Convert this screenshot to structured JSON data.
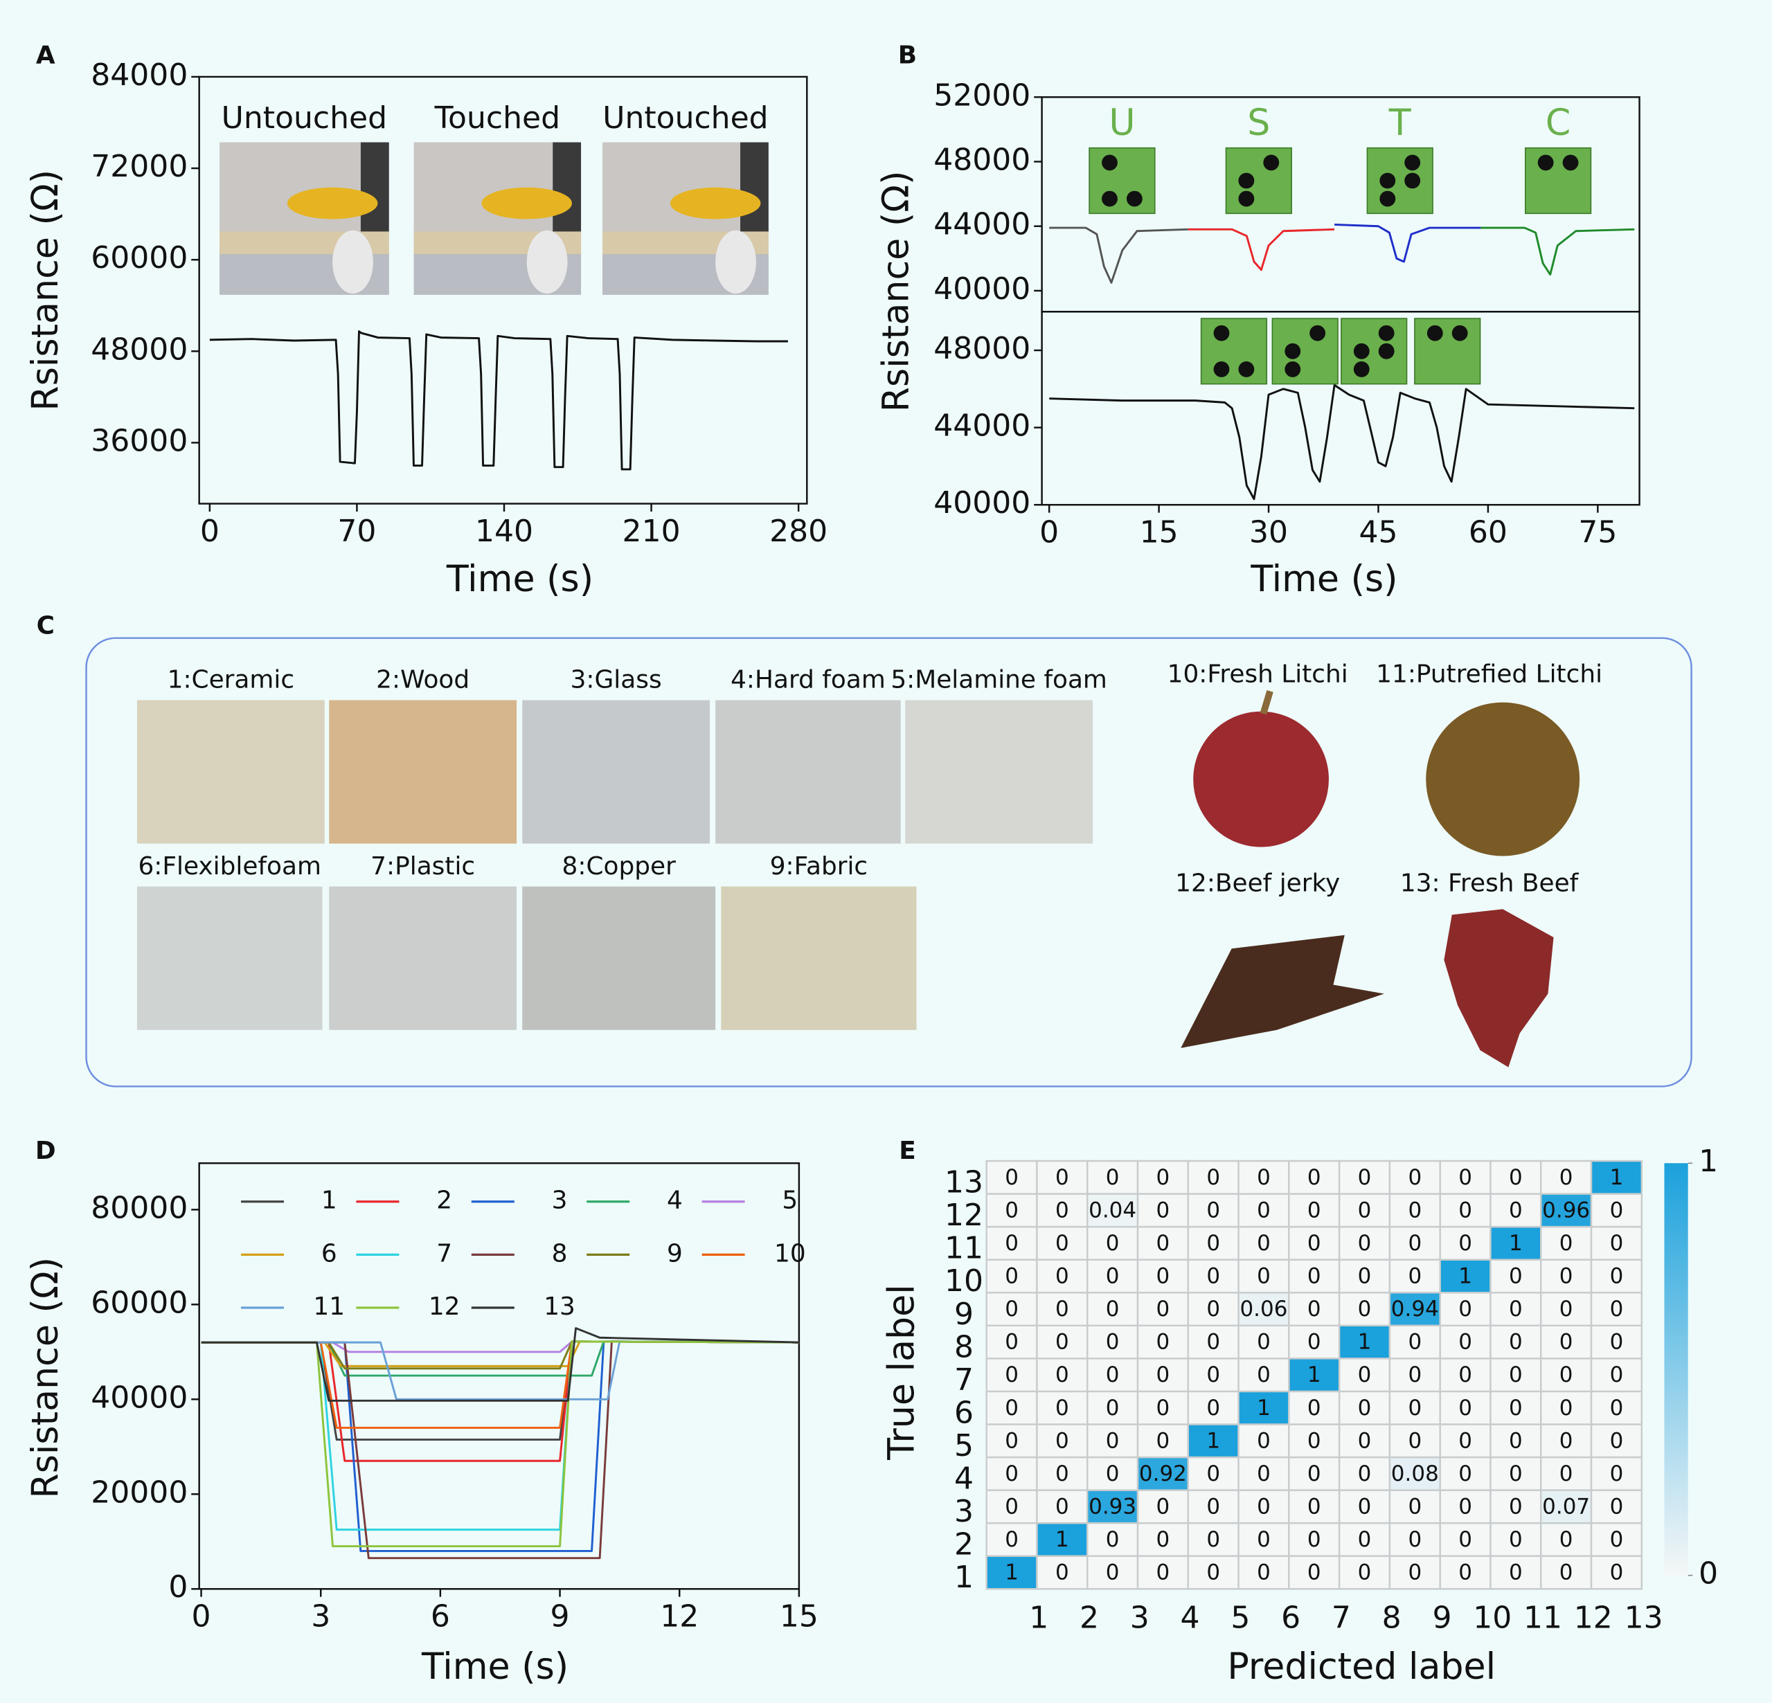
{
  "panel_labels": [
    "A",
    "B",
    "C",
    "D",
    "E"
  ],
  "materials": {
    "tiles": [
      "1:Ceramic",
      "2:Wood",
      "3:Glass",
      "4:Hard foam",
      "5:Melamine foam",
      "6:Flexiblefoam",
      "7:Plastic",
      "8:Copper",
      "9:Fabric"
    ],
    "foods": [
      "10:Fresh Litchi",
      "11:Putrefied Litchi",
      "12:Beef jerky",
      "13: Fresh Beef"
    ]
  },
  "chart_data": [
    {
      "type": "line",
      "ylabel": "Rsistance (Ω)",
      "xlabel": "Time (s)",
      "inset_labels": [
        "Untouched",
        "Touched",
        "Untouched"
      ],
      "color": "#111111",
      "xlim": [
        -5,
        284
      ],
      "ylim": [
        28000,
        84000
      ],
      "xticks": [
        0,
        70,
        140,
        210,
        280
      ],
      "yticks": [
        36000,
        48000,
        60000,
        72000,
        84000
      ],
      "x": [
        0,
        20,
        40,
        60,
        61,
        62,
        69,
        70,
        71,
        72,
        80,
        95,
        96,
        97,
        101,
        102,
        103,
        110,
        128,
        129,
        130,
        135,
        136,
        137,
        145,
        162,
        163,
        164,
        168,
        169,
        170,
        180,
        194,
        195,
        196,
        200,
        201,
        202,
        220,
        240,
        260,
        275
      ],
      "values": [
        49500,
        49600,
        49400,
        49500,
        45000,
        33500,
        33300,
        40000,
        50600,
        50400,
        49800,
        49700,
        45000,
        33000,
        33000,
        42000,
        50200,
        49800,
        49700,
        45000,
        33000,
        33000,
        42000,
        50000,
        49700,
        49600,
        45000,
        32800,
        32800,
        42000,
        50000,
        49700,
        49600,
        45000,
        32500,
        32500,
        42000,
        49800,
        49500,
        49400,
        49300,
        49300
      ]
    },
    {
      "type": "line",
      "ylabel": "Rsistance (Ω)",
      "annotations": [
        "U",
        "S",
        "T",
        "C"
      ],
      "xlim": [
        -1,
        80.7
      ],
      "ylim": [
        38700,
        52000
      ],
      "yticks": [
        40000,
        44000,
        48000,
        52000
      ],
      "series": [
        {
          "color": "#555555",
          "x": [
            0,
            5,
            6.5,
            7.5,
            8.5,
            10,
            12,
            19
          ],
          "values": [
            43900,
            43900,
            43500,
            41500,
            40500,
            42500,
            43700,
            43800
          ]
        },
        {
          "color": "#e8262b",
          "x": [
            19,
            25,
            27,
            28,
            29,
            30,
            32,
            39
          ],
          "values": [
            43800,
            43800,
            43400,
            41800,
            41300,
            42800,
            43700,
            43800
          ]
        },
        {
          "color": "#1f2ec9",
          "x": [
            39,
            45,
            46.5,
            47.5,
            48.5,
            49.5,
            52,
            59
          ],
          "values": [
            44100,
            44000,
            43600,
            42000,
            41800,
            43500,
            43900,
            43900
          ]
        },
        {
          "color": "#1f8a2a",
          "x": [
            59,
            65,
            66.5,
            67.5,
            68.5,
            69.5,
            72,
            80
          ],
          "values": [
            43900,
            43900,
            43600,
            41700,
            41000,
            42800,
            43700,
            43800
          ]
        }
      ]
    },
    {
      "type": "line",
      "xlabel": "Time (s)",
      "color": "#111111",
      "xlim": [
        -1,
        80.7
      ],
      "ylim": [
        40000,
        50000
      ],
      "xticks": [
        0,
        15,
        30,
        45,
        60,
        75
      ],
      "yticks": [
        40000,
        44000,
        48000
      ],
      "x": [
        0,
        10,
        20,
        24,
        25,
        26,
        27,
        28,
        29,
        30,
        32,
        34,
        35,
        36,
        37,
        38,
        39,
        41,
        43,
        44,
        45,
        46,
        47,
        48,
        50,
        52,
        53,
        54,
        55,
        56,
        57,
        60,
        70,
        80
      ],
      "values": [
        45500,
        45400,
        45400,
        45300,
        45000,
        43500,
        41000,
        40300,
        42500,
        45700,
        46000,
        45800,
        44000,
        41800,
        41200,
        43500,
        46200,
        45700,
        45400,
        43800,
        42200,
        42000,
        43500,
        45800,
        45500,
        45300,
        44000,
        42000,
        41200,
        43500,
        46000,
        45200,
        45100,
        45000
      ]
    },
    {
      "type": "line",
      "ylabel": "Rsistance (Ω)",
      "xlabel": "Time (s)",
      "legend": true,
      "xlim": [
        -0.05,
        15
      ],
      "ylim": [
        0,
        89800
      ],
      "xticks": [
        0,
        3,
        6,
        9,
        12,
        15
      ],
      "yticks": [
        0,
        20000,
        40000,
        60000,
        80000
      ],
      "series": [
        {
          "name": "1",
          "color": "#444444",
          "x": [
            0,
            3.0,
            3.4,
            9.0,
            9.3,
            15
          ],
          "values": [
            52000,
            52000,
            31500,
            31500,
            52200,
            52000
          ]
        },
        {
          "name": "2",
          "color": "#e8262b",
          "x": [
            0,
            3.2,
            3.6,
            9.0,
            9.3,
            15
          ],
          "values": [
            52000,
            52000,
            27000,
            27000,
            52200,
            52000
          ]
        },
        {
          "name": "3",
          "color": "#1f5fd0",
          "x": [
            0,
            3.6,
            4.0,
            9.8,
            10.1,
            15
          ],
          "values": [
            52000,
            52000,
            8000,
            8000,
            52200,
            52000
          ]
        },
        {
          "name": "4",
          "color": "#2fa86a",
          "x": [
            0,
            3.2,
            3.6,
            9.8,
            10.1,
            15
          ],
          "values": [
            52000,
            52000,
            45000,
            45000,
            52200,
            52000
          ]
        },
        {
          "name": "5",
          "color": "#b47fe0",
          "x": [
            0,
            3.3,
            3.7,
            9.0,
            9.3,
            15
          ],
          "values": [
            52000,
            52000,
            50000,
            50000,
            52200,
            52000
          ]
        },
        {
          "name": "6",
          "color": "#d4a017",
          "x": [
            0,
            3.1,
            3.5,
            9.2,
            9.5,
            15
          ],
          "values": [
            52000,
            52000,
            47000,
            47000,
            52200,
            52000
          ]
        },
        {
          "name": "7",
          "color": "#2ed3e0",
          "x": [
            0,
            3.0,
            3.4,
            9.0,
            9.3,
            15
          ],
          "values": [
            52000,
            52000,
            12500,
            12500,
            52200,
            52000
          ]
        },
        {
          "name": "8",
          "color": "#7a3b3b",
          "x": [
            0,
            3.6,
            4.2,
            10.0,
            10.3,
            15
          ],
          "values": [
            52000,
            52000,
            6500,
            6500,
            52200,
            52000
          ]
        },
        {
          "name": "9",
          "color": "#7d7d1a",
          "x": [
            0,
            3.2,
            3.6,
            9.0,
            9.3,
            15
          ],
          "values": [
            52000,
            52000,
            46500,
            46500,
            52200,
            52000
          ]
        },
        {
          "name": "10",
          "color": "#f06010",
          "x": [
            0,
            3.0,
            3.4,
            9.0,
            9.3,
            15
          ],
          "values": [
            52000,
            52000,
            34000,
            34000,
            52200,
            52000
          ]
        },
        {
          "name": "11",
          "color": "#6aa0d8",
          "x": [
            0,
            4.5,
            4.9,
            10.2,
            10.5,
            15
          ],
          "values": [
            52000,
            52000,
            40000,
            40000,
            52200,
            52000
          ]
        },
        {
          "name": "12",
          "color": "#8cc43c",
          "x": [
            0,
            2.9,
            3.3,
            9.0,
            9.3,
            15
          ],
          "values": [
            52000,
            52000,
            9000,
            9000,
            52200,
            52000
          ]
        },
        {
          "name": "13",
          "color": "#333333",
          "x": [
            0,
            2.9,
            3.2,
            9.2,
            9.4,
            10,
            15
          ],
          "values": [
            52000,
            52000,
            39700,
            39700,
            55000,
            53000,
            52000
          ]
        }
      ]
    },
    {
      "type": "heatmap",
      "ylabel": "True label",
      "xlabel": "Predicted label",
      "color_low": "#f5f7f7",
      "color_high": "#1ba1dc",
      "zlim": [
        0,
        1
      ],
      "colorbar_ticks": [
        0,
        1
      ],
      "xticks": [
        1,
        2,
        3,
        4,
        5,
        6,
        7,
        8,
        9,
        10,
        11,
        12,
        13
      ],
      "yticks": [
        1,
        2,
        3,
        4,
        5,
        6,
        7,
        8,
        9,
        10,
        11,
        12,
        13
      ],
      "z": [
        [
          1,
          0,
          0,
          0,
          0,
          0,
          0,
          0,
          0,
          0,
          0,
          0,
          0
        ],
        [
          0,
          1,
          0,
          0,
          0,
          0,
          0,
          0,
          0,
          0,
          0,
          0,
          0
        ],
        [
          0,
          0,
          0.93,
          0,
          0,
          0,
          0,
          0,
          0,
          0,
          0,
          0.07,
          0
        ],
        [
          0,
          0,
          0,
          0.92,
          0,
          0,
          0,
          0,
          0.08,
          0,
          0,
          0,
          0
        ],
        [
          0,
          0,
          0,
          0,
          1,
          0,
          0,
          0,
          0,
          0,
          0,
          0,
          0
        ],
        [
          0,
          0,
          0,
          0,
          0,
          1,
          0,
          0,
          0,
          0,
          0,
          0,
          0
        ],
        [
          0,
          0,
          0,
          0,
          0,
          0,
          1,
          0,
          0,
          0,
          0,
          0,
          0
        ],
        [
          0,
          0,
          0,
          0,
          0,
          0,
          0,
          1,
          0,
          0,
          0,
          0,
          0
        ],
        [
          0,
          0,
          0,
          0,
          0,
          0.06,
          0,
          0,
          0.94,
          0,
          0,
          0,
          0
        ],
        [
          0,
          0,
          0,
          0,
          0,
          0,
          0,
          0,
          0,
          1,
          0,
          0,
          0
        ],
        [
          0,
          0,
          0,
          0,
          0,
          0,
          0,
          0,
          0,
          0,
          1,
          0,
          0
        ],
        [
          0,
          0,
          0.04,
          0,
          0,
          0,
          0,
          0,
          0,
          0,
          0,
          0.96,
          0
        ],
        [
          0,
          0,
          0,
          0,
          0,
          0,
          0,
          0,
          0,
          0,
          0,
          0,
          1
        ]
      ]
    }
  ]
}
